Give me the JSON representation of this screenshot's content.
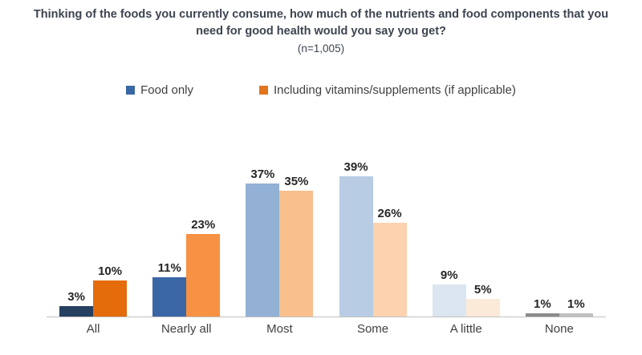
{
  "header": {
    "title": "Thinking of the foods you currently consume, how much of the nutrients and food components that you need for good health would you say you get?",
    "sample": "(n=1,005)"
  },
  "legend": {
    "items": [
      {
        "label": "Food only",
        "swatch": "#3a67a5"
      },
      {
        "label": "Including vitamins/supplements (if applicable)",
        "swatch": "#e2751d"
      }
    ]
  },
  "chart_data": {
    "type": "bar",
    "title": "Thinking of the foods you currently consume, how much of the nutrients and food components that you need for good health would you say you get?",
    "subtitle": "(n=1,005)",
    "categories": [
      "All",
      "Nearly all",
      "Most",
      "Some",
      "A little",
      "None"
    ],
    "series": [
      {
        "name": "Food only",
        "values": [
          3,
          11,
          37,
          39,
          9,
          1
        ],
        "colors": [
          "#254061",
          "#3a66a5",
          "#92b1d5",
          "#b8cce4",
          "#dce6f1",
          "#8c8c8c"
        ]
      },
      {
        "name": "Including vitamins/supplements (if applicable)",
        "values": [
          10,
          23,
          35,
          26,
          5,
          1
        ],
        "colors": [
          "#e46c0a",
          "#f79143",
          "#f9bf8d",
          "#fcd2af",
          "#fcead9",
          "#bfbfbf"
        ]
      }
    ],
    "value_suffix": "%",
    "ylim": [
      0,
      40
    ],
    "grid": false,
    "y_axis_visible": false,
    "legend_position": "top",
    "axis_line_color": "#c0c0c0"
  }
}
